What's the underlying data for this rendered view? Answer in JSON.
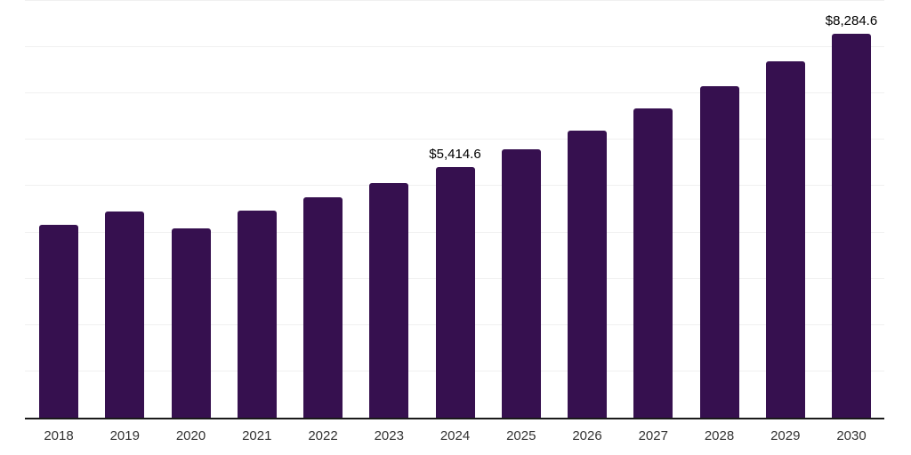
{
  "chart_data": {
    "type": "bar",
    "title": "",
    "xlabel": "",
    "ylabel": "",
    "categories": [
      "2018",
      "2019",
      "2020",
      "2021",
      "2022",
      "2023",
      "2024",
      "2025",
      "2026",
      "2027",
      "2028",
      "2029",
      "2030"
    ],
    "values": [
      4160,
      4460,
      4085,
      4480,
      4760,
      5070,
      5414.6,
      5790,
      6190,
      6670,
      7150,
      7690,
      8284.6
    ],
    "data_labels": [
      "",
      "",
      "",
      "",
      "",
      "",
      "$5,414.6",
      "",
      "",
      "",
      "",
      "",
      "$8,284.6"
    ],
    "ylim": [
      0,
      9000
    ],
    "gridline_step": 1000,
    "grid_on": true,
    "legend_position": "none",
    "colors": {
      "bar": "#36104f",
      "grid": "#f0f0f0",
      "axis": "#1a1a1a",
      "value_label": "#000000",
      "tick_label": "#333333",
      "background": "#ffffff"
    }
  }
}
